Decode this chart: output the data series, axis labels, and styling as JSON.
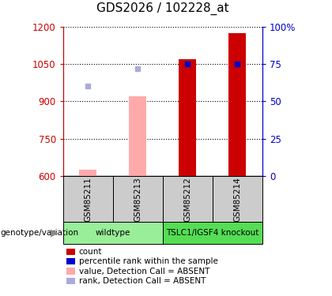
{
  "title": "GDS2026 / 102228_at",
  "samples": [
    "GSM85211",
    "GSM85213",
    "GSM85212",
    "GSM85214"
  ],
  "ylim": [
    600,
    1200
  ],
  "yticks": [
    600,
    750,
    900,
    1050,
    1200
  ],
  "y2ticks": [
    0,
    25,
    50,
    75,
    100
  ],
  "y2labels": [
    "0",
    "25",
    "50",
    "75",
    "100%"
  ],
  "y2lim": [
    0,
    100
  ],
  "bar_values": [
    625,
    920,
    1070,
    1175
  ],
  "bar_colors": [
    "#ffaaaa",
    "#ffaaaa",
    "#cc0000",
    "#cc0000"
  ],
  "dot_values": [
    960,
    1030,
    1050,
    1050
  ],
  "dot_colors": [
    "#aaaadd",
    "#aaaadd",
    "#0000cc",
    "#0000cc"
  ],
  "groups": [
    {
      "label": "wildtype",
      "indices": [
        0,
        1
      ],
      "color": "#99ee99"
    },
    {
      "label": "TSLC1/IGSF4 knockout",
      "indices": [
        2,
        3
      ],
      "color": "#55dd55"
    }
  ],
  "group_label": "genotype/variation",
  "legend_items": [
    {
      "color": "#cc0000",
      "label": "count"
    },
    {
      "color": "#0000cc",
      "label": "percentile rank within the sample"
    },
    {
      "color": "#ffaaaa",
      "label": "value, Detection Call = ABSENT"
    },
    {
      "color": "#aaaadd",
      "label": "rank, Detection Call = ABSENT"
    }
  ],
  "left_axis_color": "#cc0000",
  "right_axis_color": "#0000cc",
  "sample_area_color": "#cccccc",
  "bar_width": 0.35
}
